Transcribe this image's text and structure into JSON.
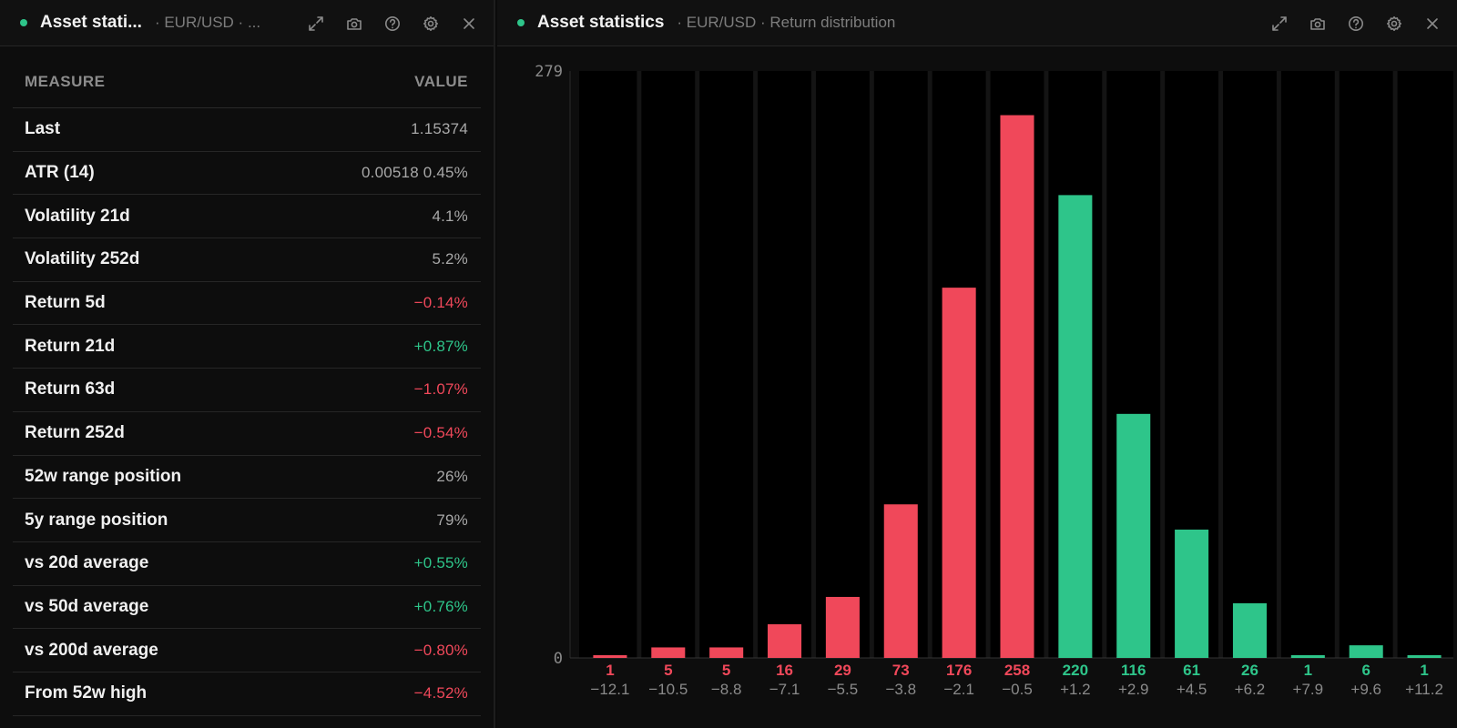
{
  "left_panel": {
    "title": "Asset stati...",
    "subtitle": "· EUR/USD · ...",
    "table": {
      "header_measure": "MEASURE",
      "header_value": "VALUE",
      "rows": [
        {
          "label": "Last",
          "value": "1.15374",
          "tone": "neutral"
        },
        {
          "label": "ATR (14)",
          "value": "0.00518 0.45%",
          "tone": "neutral"
        },
        {
          "label": "Volatility 21d",
          "value": "4.1%",
          "tone": "neutral"
        },
        {
          "label": "Volatility 252d",
          "value": "5.2%",
          "tone": "neutral"
        },
        {
          "label": "Return 5d",
          "value": "−0.14%",
          "tone": "neg"
        },
        {
          "label": "Return 21d",
          "value": "+0.87%",
          "tone": "pos"
        },
        {
          "label": "Return 63d",
          "value": "−1.07%",
          "tone": "neg"
        },
        {
          "label": "Return 252d",
          "value": "−0.54%",
          "tone": "neg"
        },
        {
          "label": "52w range position",
          "value": "26%",
          "tone": "neutral"
        },
        {
          "label": "5y range position",
          "value": "79%",
          "tone": "neutral"
        },
        {
          "label": "vs 20d average",
          "value": "+0.55%",
          "tone": "pos"
        },
        {
          "label": "vs 50d average",
          "value": "+0.76%",
          "tone": "pos"
        },
        {
          "label": "vs 200d average",
          "value": "−0.80%",
          "tone": "neg"
        },
        {
          "label": "From 52w high",
          "value": "−4.52%",
          "tone": "neg"
        }
      ]
    }
  },
  "right_panel": {
    "title": "Asset statistics",
    "subtitle": "· EUR/USD · Return distribution"
  },
  "icons": [
    "expand-icon",
    "camera-icon",
    "help-icon",
    "gear-icon",
    "close-icon"
  ],
  "colors": {
    "neg": "#f0485a",
    "pos": "#2ec58a",
    "dot": "#2ec58a"
  },
  "chart_data": {
    "type": "bar",
    "categories": [
      "−12.1",
      "−10.5",
      "−8.8",
      "−7.1",
      "−5.5",
      "−3.8",
      "−2.1",
      "−0.5",
      "+1.2",
      "+2.9",
      "+4.5",
      "+6.2",
      "+7.9",
      "+9.6",
      "+11.2"
    ],
    "values": [
      1,
      5,
      5,
      16,
      29,
      73,
      176,
      258,
      220,
      116,
      61,
      26,
      1,
      6,
      1
    ],
    "signs": [
      "neg",
      "neg",
      "neg",
      "neg",
      "neg",
      "neg",
      "neg",
      "neg",
      "pos",
      "pos",
      "pos",
      "pos",
      "pos",
      "pos",
      "pos"
    ],
    "ylim": [
      0,
      279
    ],
    "ytick_labels": [
      "279",
      "0"
    ],
    "grid": false
  }
}
